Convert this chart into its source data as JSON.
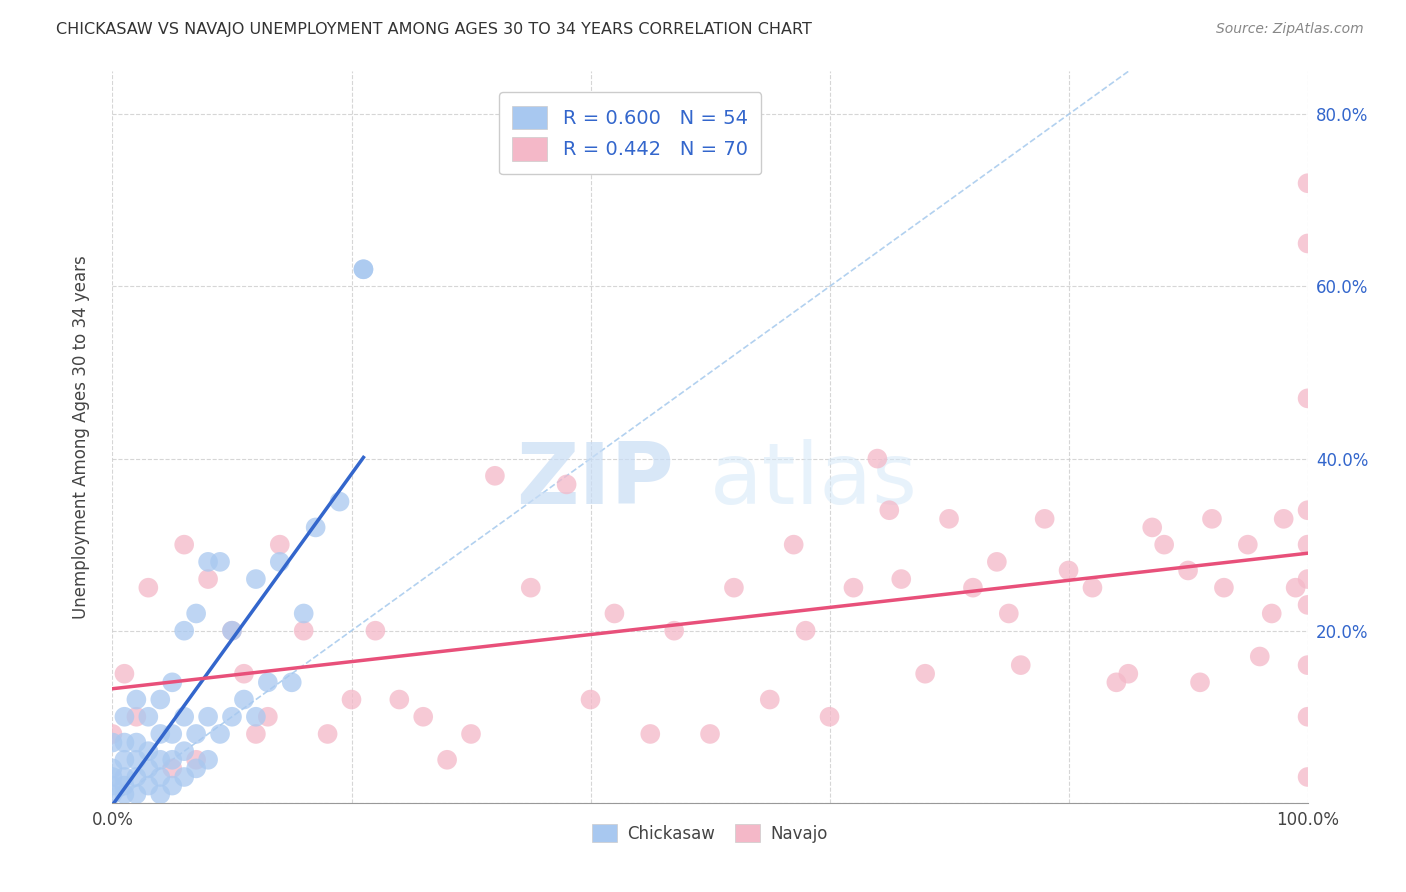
{
  "title": "CHICKASAW VS NAVAJO UNEMPLOYMENT AMONG AGES 30 TO 34 YEARS CORRELATION CHART",
  "source": "Source: ZipAtlas.com",
  "ylabel": "Unemployment Among Ages 30 to 34 years",
  "xlim": [
    0.0,
    1.0
  ],
  "ylim": [
    0.0,
    0.85
  ],
  "xticks": [
    0.0,
    0.2,
    0.4,
    0.6,
    0.8,
    1.0
  ],
  "yticks": [
    0.0,
    0.2,
    0.4,
    0.6,
    0.8
  ],
  "xtick_labels_bottom": [
    "0.0%",
    "",
    "",
    "",
    "",
    "100.0%"
  ],
  "ytick_labels_right": [
    "",
    "20.0%",
    "40.0%",
    "60.0%",
    "80.0%"
  ],
  "background_color": "#ffffff",
  "grid_color": "#cccccc",
  "chickasaw_color": "#a8c8f0",
  "navajo_color": "#f4b8c8",
  "chickasaw_line_color": "#3366cc",
  "navajo_line_color": "#e8507a",
  "diagonal_color": "#aaccee",
  "legend_text_color": "#3366cc",
  "legend_R_chickasaw": "R = 0.600",
  "legend_N_chickasaw": "N = 54",
  "legend_R_navajo": "R = 0.442",
  "legend_N_navajo": "N = 70",
  "watermark_zip": "ZIP",
  "watermark_atlas": "atlas",
  "chickasaw_x": [
    0.0,
    0.0,
    0.0,
    0.0,
    0.0,
    0.01,
    0.01,
    0.01,
    0.01,
    0.01,
    0.01,
    0.02,
    0.02,
    0.02,
    0.02,
    0.02,
    0.03,
    0.03,
    0.03,
    0.03,
    0.04,
    0.04,
    0.04,
    0.04,
    0.04,
    0.05,
    0.05,
    0.05,
    0.05,
    0.06,
    0.06,
    0.06,
    0.06,
    0.07,
    0.07,
    0.07,
    0.08,
    0.08,
    0.08,
    0.09,
    0.09,
    0.1,
    0.1,
    0.11,
    0.12,
    0.12,
    0.13,
    0.14,
    0.15,
    0.16,
    0.17,
    0.19,
    0.21,
    0.21
  ],
  "chickasaw_y": [
    0.01,
    0.02,
    0.03,
    0.04,
    0.07,
    0.01,
    0.02,
    0.03,
    0.05,
    0.07,
    0.1,
    0.01,
    0.03,
    0.05,
    0.07,
    0.12,
    0.02,
    0.04,
    0.06,
    0.1,
    0.01,
    0.03,
    0.05,
    0.08,
    0.12,
    0.02,
    0.05,
    0.08,
    0.14,
    0.03,
    0.06,
    0.1,
    0.2,
    0.04,
    0.08,
    0.22,
    0.05,
    0.1,
    0.28,
    0.08,
    0.28,
    0.1,
    0.2,
    0.12,
    0.1,
    0.26,
    0.14,
    0.28,
    0.14,
    0.22,
    0.32,
    0.35,
    0.62,
    0.62
  ],
  "navajo_x": [
    0.0,
    0.01,
    0.02,
    0.03,
    0.05,
    0.06,
    0.07,
    0.08,
    0.1,
    0.11,
    0.12,
    0.13,
    0.14,
    0.16,
    0.18,
    0.2,
    0.22,
    0.24,
    0.26,
    0.28,
    0.3,
    0.32,
    0.35,
    0.38,
    0.4,
    0.42,
    0.45,
    0.47,
    0.5,
    0.52,
    0.55,
    0.57,
    0.58,
    0.6,
    0.62,
    0.64,
    0.65,
    0.66,
    0.68,
    0.7,
    0.72,
    0.74,
    0.75,
    0.76,
    0.78,
    0.8,
    0.82,
    0.84,
    0.85,
    0.87,
    0.88,
    0.9,
    0.91,
    0.92,
    0.93,
    0.95,
    0.96,
    0.97,
    0.98,
    0.99,
    1.0,
    1.0,
    1.0,
    1.0,
    1.0,
    1.0,
    1.0,
    1.0,
    1.0,
    1.0
  ],
  "navajo_y": [
    0.08,
    0.15,
    0.1,
    0.25,
    0.04,
    0.3,
    0.05,
    0.26,
    0.2,
    0.15,
    0.08,
    0.1,
    0.3,
    0.2,
    0.08,
    0.12,
    0.2,
    0.12,
    0.1,
    0.05,
    0.08,
    0.38,
    0.25,
    0.37,
    0.12,
    0.22,
    0.08,
    0.2,
    0.08,
    0.25,
    0.12,
    0.3,
    0.2,
    0.1,
    0.25,
    0.4,
    0.34,
    0.26,
    0.15,
    0.33,
    0.25,
    0.28,
    0.22,
    0.16,
    0.33,
    0.27,
    0.25,
    0.14,
    0.15,
    0.32,
    0.3,
    0.27,
    0.14,
    0.33,
    0.25,
    0.3,
    0.17,
    0.22,
    0.33,
    0.25,
    0.03,
    0.1,
    0.16,
    0.23,
    0.26,
    0.3,
    0.34,
    0.47,
    0.65,
    0.72
  ]
}
